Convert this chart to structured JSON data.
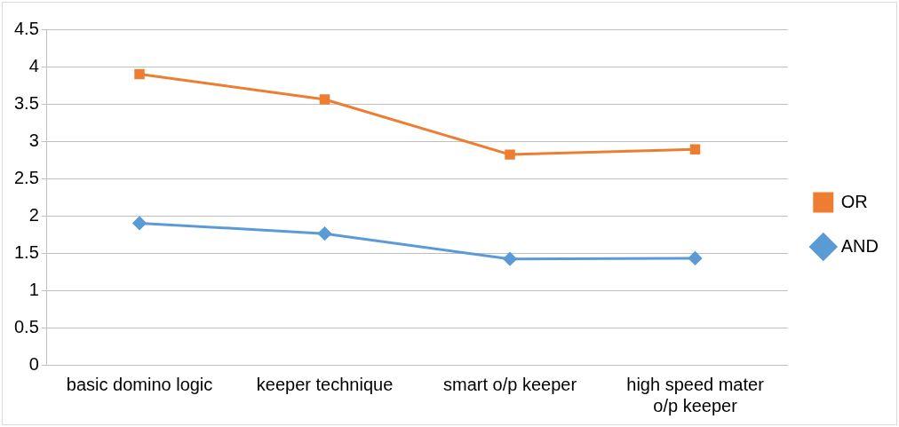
{
  "chart_data": {
    "type": "line",
    "categories": [
      "basic domino logic",
      "keeper technique",
      "smart o/p keeper",
      "high speed mater o/p keeper"
    ],
    "series": [
      {
        "name": "OR",
        "color": "#ed7d31",
        "values": [
          3.9,
          3.56,
          2.82,
          2.89
        ],
        "marker": "square"
      },
      {
        "name": "AND",
        "color": "#5b9bd5",
        "values": [
          1.9,
          1.76,
          1.42,
          1.43
        ],
        "marker": "diamond"
      }
    ],
    "ylim": [
      0,
      4.5
    ],
    "yticks": [
      0,
      0.5,
      1,
      1.5,
      2,
      2.5,
      3,
      3.5,
      4,
      4.5
    ],
    "grid": "y",
    "legend": "right"
  }
}
